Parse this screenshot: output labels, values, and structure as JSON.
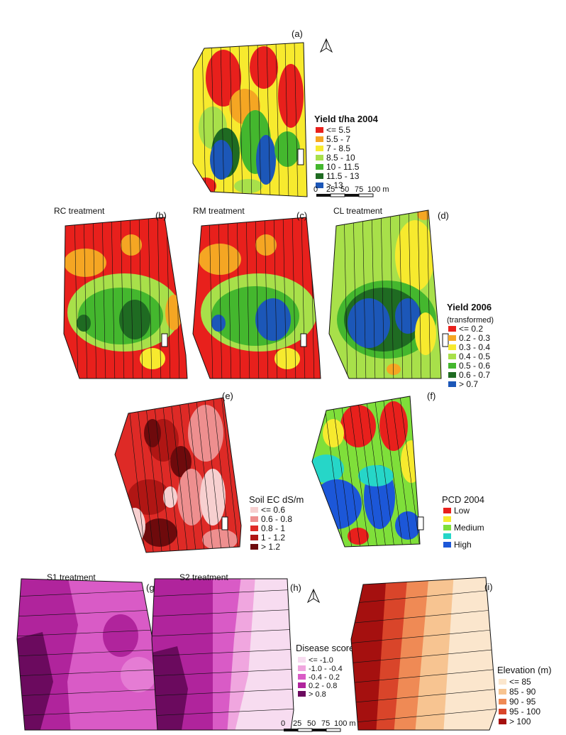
{
  "panels": {
    "a": {
      "tag": "(a)"
    },
    "b": {
      "tag": "(b)",
      "title": "RC treatment"
    },
    "c": {
      "tag": "(c)",
      "title": "RM treatment"
    },
    "d": {
      "tag": "(d)",
      "title": "CL treatment"
    },
    "e": {
      "tag": "(e)"
    },
    "f": {
      "tag": "(f)"
    },
    "g": {
      "tag": "(g)",
      "title": "S1 treatment"
    },
    "h": {
      "tag": "(h)",
      "title": "S2 treatment"
    },
    "i": {
      "tag": "(i)"
    }
  },
  "legends": {
    "yield2004": {
      "title": "Yield t/ha 2004",
      "items": [
        {
          "label": "<= 5.5",
          "color": "#e8201c"
        },
        {
          "label": "5.5 - 7",
          "color": "#f5a623"
        },
        {
          "label": "7 - 8.5",
          "color": "#f7ea2e"
        },
        {
          "label": "8.5 - 10",
          "color": "#a8e04a"
        },
        {
          "label": "10 - 11.5",
          "color": "#44b72e"
        },
        {
          "label": "11.5 - 13",
          "color": "#1f6b22"
        },
        {
          "label": "> 13",
          "color": "#1c57b8"
        }
      ]
    },
    "yield2006": {
      "title": "Yield 2006",
      "subtitle": "(transformed)",
      "items": [
        {
          "label": "<= 0.2",
          "color": "#e8201c"
        },
        {
          "label": "0.2 - 0.3",
          "color": "#f5a623"
        },
        {
          "label": "0.3 - 0.4",
          "color": "#f7ea2e"
        },
        {
          "label": "0.4 - 0.5",
          "color": "#a8e04a"
        },
        {
          "label": "0.5 - 0.6",
          "color": "#44b72e"
        },
        {
          "label": "0.6 - 0.7",
          "color": "#1f6b22"
        },
        {
          "label": "> 0.7",
          "color": "#1c57b8"
        }
      ]
    },
    "soilec": {
      "title": "Soil EC dS/m",
      "items": [
        {
          "label": "<= 0.6",
          "color": "#f7d0d0"
        },
        {
          "label": "0.6 - 0.8",
          "color": "#ee8f8f"
        },
        {
          "label": "0.8 - 1",
          "color": "#de2a26"
        },
        {
          "label": "1 - 1.2",
          "color": "#b01614"
        },
        {
          "label": "> 1.2",
          "color": "#6e0a0c"
        }
      ]
    },
    "pcd": {
      "title": "PCD 2004",
      "items": [
        {
          "label": "Low",
          "color": "#e8201c"
        },
        {
          "label": "",
          "color": "#f7ea2e"
        },
        {
          "label": "Medium",
          "color": "#7fdf3a"
        },
        {
          "label": "",
          "color": "#26d6c8"
        },
        {
          "label": "High",
          "color": "#1c57d8"
        }
      ]
    },
    "disease": {
      "title": "Disease score",
      "items": [
        {
          "label": "<= -1.0",
          "color": "#f7dcf0"
        },
        {
          "label": "-1.0 - -0.4",
          "color": "#f0a6df"
        },
        {
          "label": "-0.4 - 0.2",
          "color": "#d95bc6"
        },
        {
          "label": "0.2 - 0.8",
          "color": "#b0249c"
        },
        {
          "label": "> 0.8",
          "color": "#6b0a5e"
        }
      ]
    },
    "elevation": {
      "title": "Elevation (m)",
      "items": [
        {
          "label": "<= 85",
          "color": "#fbe6cd"
        },
        {
          "label": "85 - 90",
          "color": "#f7c491"
        },
        {
          "label": "90 - 95",
          "color": "#ef8a55"
        },
        {
          "label": "95 - 100",
          "color": "#d9452a"
        },
        {
          "label": "> 100",
          "color": "#a5100f"
        }
      ]
    }
  },
  "scalebars": {
    "top": {
      "ticks": [
        "0",
        "25",
        "50",
        "75",
        "100 m"
      ]
    },
    "bottom": {
      "ticks": [
        "0",
        "25",
        "50",
        "75",
        "100 m"
      ]
    }
  },
  "icons": {
    "north_arrow": "north-arrow-icon"
  }
}
